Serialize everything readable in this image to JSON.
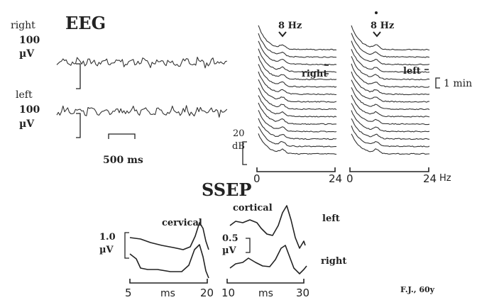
{
  "eeg": {
    "title": "EEG",
    "channel_right": {
      "side": "right",
      "amplitude": "100",
      "unit": "µV"
    },
    "channel_left": {
      "side": "left",
      "amplitude": "100",
      "unit": "µV"
    },
    "time_scale": "500 ms"
  },
  "spectra": {
    "peak_label_right": "8 Hz",
    "peak_label_left": "8 Hz",
    "label_right": "right",
    "label_left": "left",
    "time_marker": "1 min",
    "db_scale_value": "20",
    "db_scale_unit": "dB",
    "x_ticks_right": [
      "0",
      "24"
    ],
    "x_ticks_left": [
      "0",
      "24"
    ],
    "x_unit": "Hz"
  },
  "ssep": {
    "title": "SSEP",
    "cervical_label": "cervical",
    "cortical_label": "cortical",
    "side_left": "left",
    "side_right": "right",
    "cervical_scale_value": "1.0",
    "cervical_scale_unit": "µV",
    "cortical_scale_value": "0.5",
    "cortical_scale_unit": "µV",
    "cervical_axis": {
      "start": "5",
      "unit": "ms",
      "end": "20"
    },
    "cortical_axis": {
      "start": "10",
      "unit": "ms",
      "end": "30"
    },
    "patient": "F.J., 60y"
  }
}
